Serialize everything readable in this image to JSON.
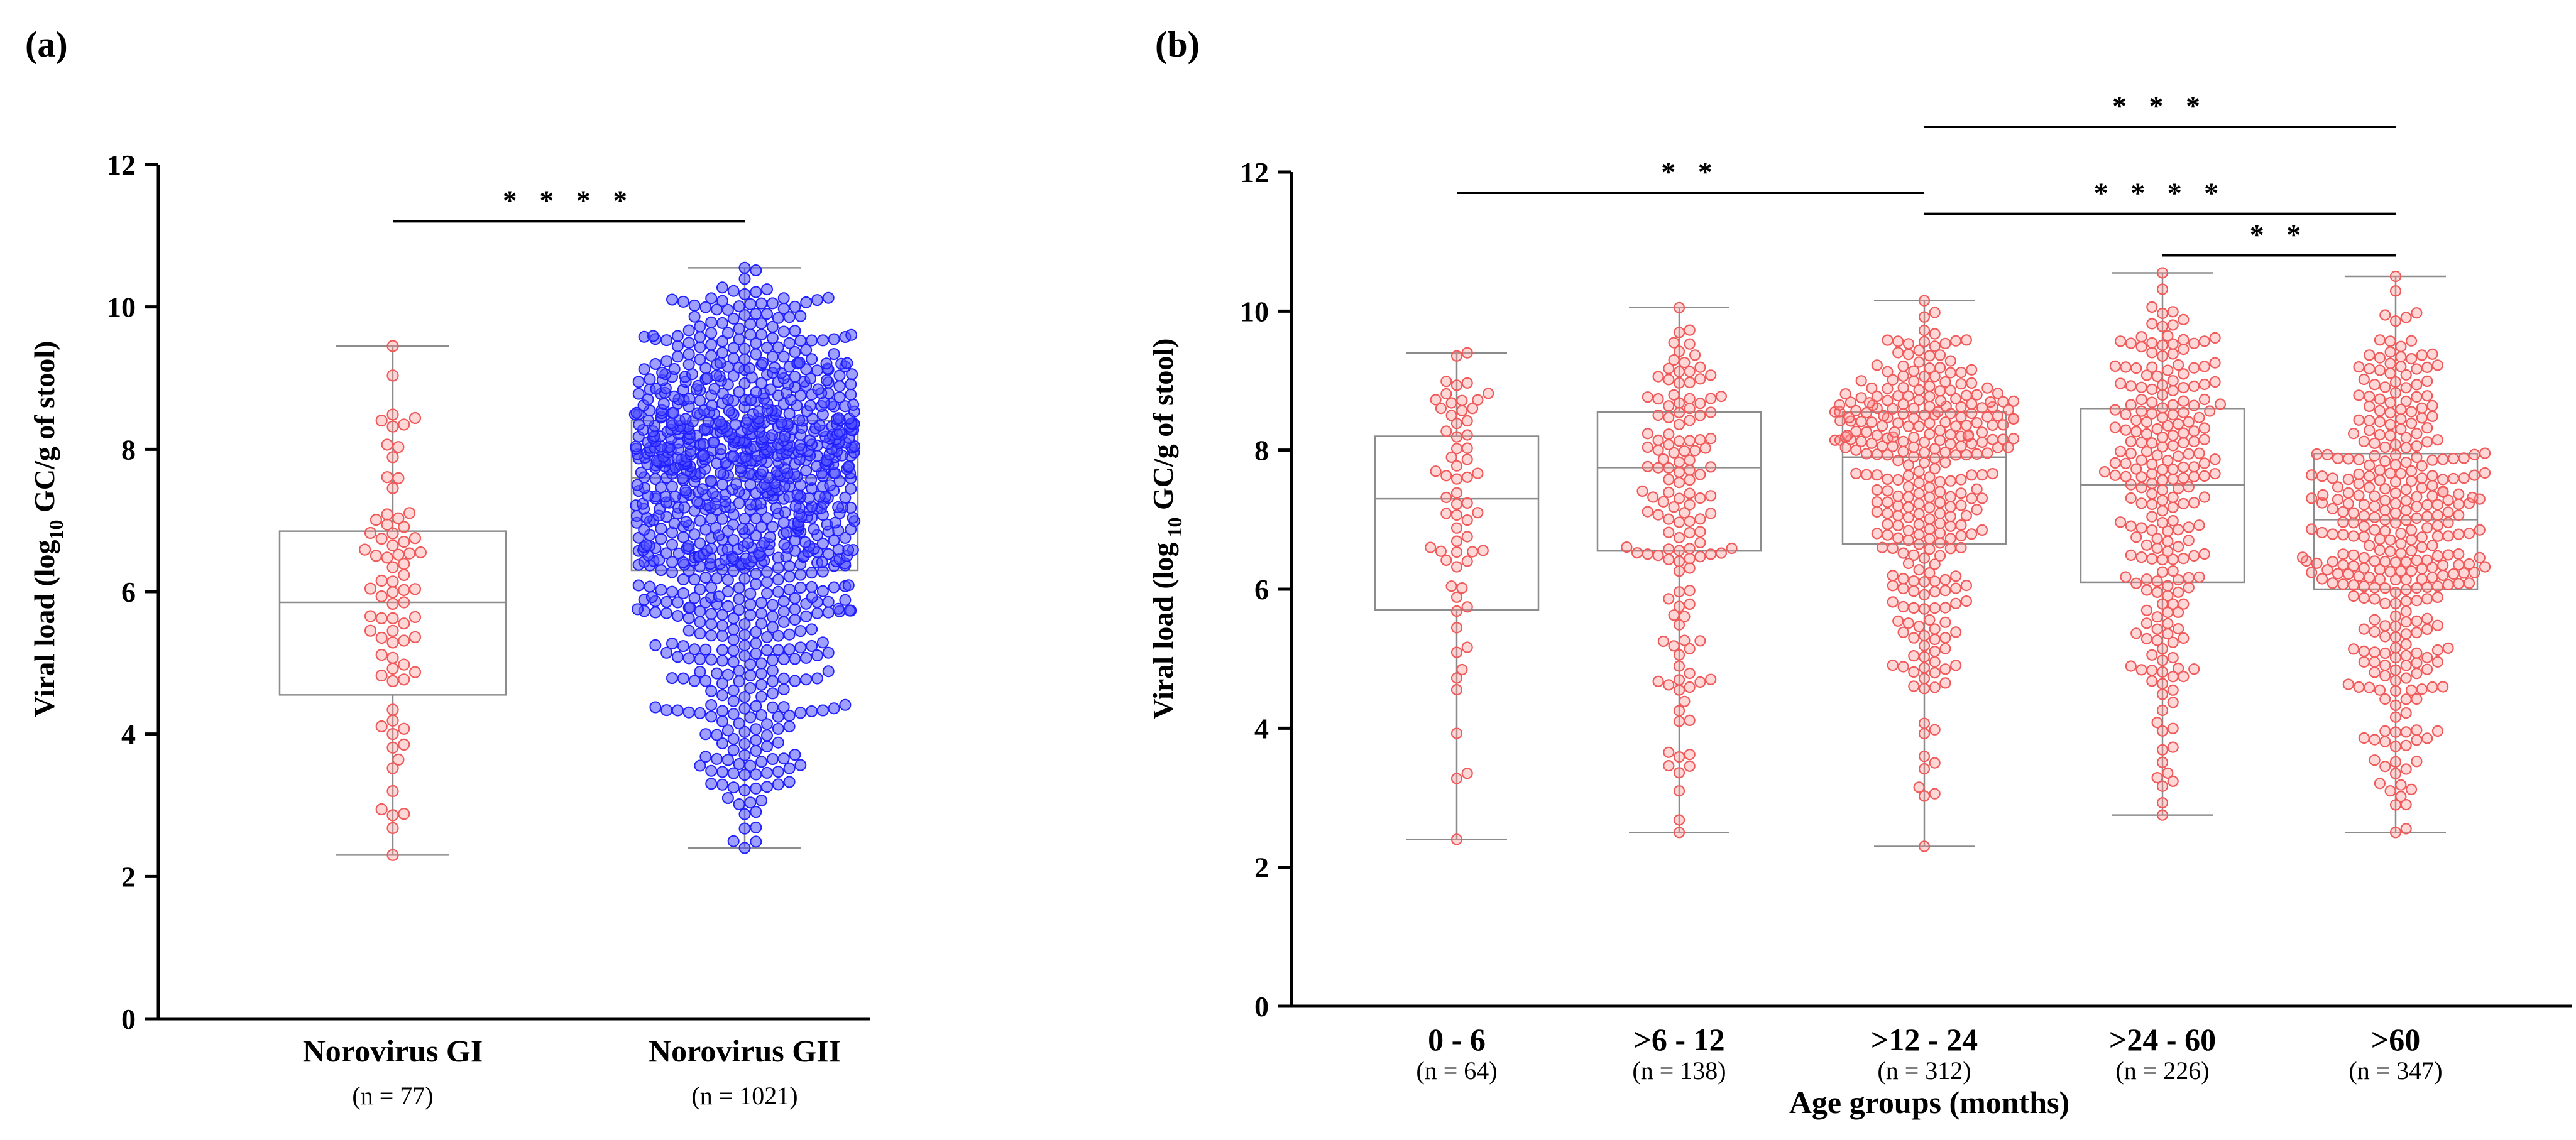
{
  "chart_data": [
    {
      "panel_label": "(a)",
      "type": "scatter",
      "subtype": "box-and-beeswarm",
      "ylabel": {
        "pre": "Viral load (log",
        "sub": "10",
        "post": " GC/g of stool)"
      },
      "ylim": [
        0,
        12
      ],
      "yticks": [
        "0",
        "2",
        "4",
        "6",
        "8",
        "10",
        "12"
      ],
      "categories": [
        {
          "name": "Norovirus GI",
          "n_label": "(n = 77)",
          "n": 77,
          "color": "#f05a5a",
          "min": 2.3,
          "q1": 4.55,
          "median": 5.85,
          "q3": 6.85,
          "max": 9.45
        },
        {
          "name": "Norovirus GII",
          "n_label": "(n = 1021)",
          "n": 1021,
          "color": "#2020ff",
          "min": 2.4,
          "q1": 6.3,
          "median": 7.6,
          "q3": 8.4,
          "max": 10.55
        }
      ],
      "significance": [
        {
          "from": 0,
          "to": 1,
          "y": 11.2,
          "label": "* * * *"
        }
      ]
    },
    {
      "panel_label": "(b)",
      "type": "scatter",
      "subtype": "box-and-beeswarm",
      "xlabel": "Age groups (months)",
      "ylabel": {
        "pre": "Viral load (log",
        "sub": " 10",
        "post": " GC/g of stool)"
      },
      "ylim": [
        0,
        12
      ],
      "yticks": [
        "0",
        "2",
        "4",
        "6",
        "8",
        "10",
        "12"
      ],
      "categories": [
        {
          "name": "0 - 6",
          "n_label": "(n = 64)",
          "n": 64,
          "color": "#f05a5a",
          "min": 2.4,
          "q1": 5.7,
          "median": 7.3,
          "q3": 8.2,
          "max": 9.4
        },
        {
          "name": ">6 - 12",
          "n_label": "(n = 138)",
          "n": 138,
          "color": "#f05a5a",
          "min": 2.5,
          "q1": 6.55,
          "median": 7.75,
          "q3": 8.55,
          "max": 10.05
        },
        {
          "name": ">12 - 24",
          "n_label": "(n = 312)",
          "n": 312,
          "color": "#f05a5a",
          "min": 2.3,
          "q1": 6.65,
          "median": 7.9,
          "q3": 8.55,
          "max": 10.15
        },
        {
          "name": ">24 - 60",
          "n_label": "(n = 226)",
          "n": 226,
          "color": "#f05a5a",
          "min": 2.75,
          "q1": 6.1,
          "median": 7.5,
          "q3": 8.6,
          "max": 10.55
        },
        {
          "name": ">60",
          "n_label": "(n = 347)",
          "n": 347,
          "color": "#f05a5a",
          "min": 2.5,
          "q1": 6.0,
          "median": 7.0,
          "q3": 7.95,
          "max": 10.5
        }
      ],
      "significance": [
        {
          "from": 0,
          "to": 2,
          "y": 11.7,
          "label": "* *"
        },
        {
          "from": 2,
          "to": 4,
          "y": 12.65,
          "label": "* * *"
        },
        {
          "from": 2,
          "to": 4,
          "y": 11.4,
          "label": "* * * *"
        },
        {
          "from": 3,
          "to": 4,
          "y": 10.8,
          "label": "* *"
        }
      ]
    }
  ]
}
